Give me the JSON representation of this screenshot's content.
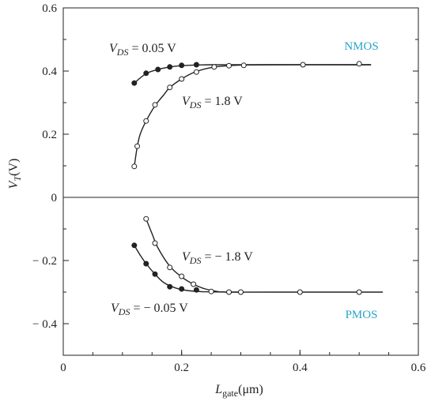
{
  "chart_data": {
    "type": "scatter",
    "x_axis": {
      "label_main": "L",
      "label_sub": "gate",
      "label_unit": "(μm)",
      "range": [
        0,
        0.6
      ],
      "ticks": [
        0,
        0.2,
        0.4,
        0.6
      ],
      "tick_labels": [
        "0",
        "0.2",
        "0.4",
        "0.6"
      ]
    },
    "y_axis": {
      "label_main": "V",
      "label_sub": "T",
      "label_unit": "(V)",
      "range": [
        -0.5,
        0.6
      ],
      "ticks": [
        0.6,
        0.4,
        0.2,
        0,
        -0.2,
        -0.4
      ],
      "tick_labels": [
        "0.6",
        "0.4",
        "0.2",
        "0",
        "− 0.2",
        "− 0.4"
      ]
    },
    "regions": [
      {
        "name": "NMOS",
        "color": "#2aa3c8"
      },
      {
        "name": "PMOS",
        "color": "#2aa3c8"
      }
    ],
    "series": [
      {
        "name": "V_DS = 0.05 V",
        "region": "NMOS",
        "marker": "filled",
        "label": {
          "v": "V",
          "sub": "DS",
          "rest": " = 0.05 V"
        },
        "points": [
          [
            0.12,
            0.362
          ],
          [
            0.14,
            0.393
          ],
          [
            0.16,
            0.405
          ],
          [
            0.18,
            0.413
          ],
          [
            0.2,
            0.418
          ],
          [
            0.225,
            0.42
          ]
        ],
        "curve": [
          [
            0.12,
            0.362
          ],
          [
            0.14,
            0.392
          ],
          [
            0.16,
            0.405
          ],
          [
            0.18,
            0.413
          ],
          [
            0.2,
            0.417
          ],
          [
            0.22,
            0.419
          ],
          [
            0.25,
            0.42
          ],
          [
            0.3,
            0.42
          ],
          [
            0.4,
            0.42
          ],
          [
            0.52,
            0.42
          ]
        ]
      },
      {
        "name": "V_DS = 1.8 V",
        "region": "NMOS",
        "marker": "open",
        "label": {
          "v": "V",
          "sub": "DS",
          "rest": " = 1.8 V"
        },
        "points": [
          [
            0.12,
            0.098
          ],
          [
            0.125,
            0.162
          ],
          [
            0.14,
            0.242
          ],
          [
            0.155,
            0.293
          ],
          [
            0.18,
            0.348
          ],
          [
            0.2,
            0.375
          ],
          [
            0.225,
            0.397
          ],
          [
            0.255,
            0.413
          ],
          [
            0.28,
            0.417
          ],
          [
            0.305,
            0.418
          ],
          [
            0.405,
            0.42
          ],
          [
            0.5,
            0.423
          ]
        ],
        "curve": [
          [
            0.12,
            0.098
          ],
          [
            0.125,
            0.16
          ],
          [
            0.13,
            0.2
          ],
          [
            0.14,
            0.242
          ],
          [
            0.155,
            0.29
          ],
          [
            0.17,
            0.325
          ],
          [
            0.18,
            0.348
          ],
          [
            0.2,
            0.375
          ],
          [
            0.22,
            0.395
          ],
          [
            0.24,
            0.407
          ],
          [
            0.26,
            0.414
          ],
          [
            0.28,
            0.417
          ],
          [
            0.3,
            0.419
          ],
          [
            0.35,
            0.42
          ],
          [
            0.52,
            0.42
          ]
        ]
      },
      {
        "name": "V_DS = − 1.8 V",
        "region": "PMOS",
        "marker": "open",
        "label": {
          "v": "V",
          "sub": "DS",
          "rest": " = − 1.8 V"
        },
        "points": [
          [
            0.14,
            -0.068
          ],
          [
            0.155,
            -0.145
          ],
          [
            0.18,
            -0.222
          ],
          [
            0.2,
            -0.25
          ],
          [
            0.22,
            -0.275
          ],
          [
            0.25,
            -0.298
          ],
          [
            0.28,
            -0.3
          ],
          [
            0.3,
            -0.3
          ],
          [
            0.4,
            -0.3
          ],
          [
            0.5,
            -0.3
          ]
        ],
        "curve": [
          [
            0.14,
            -0.068
          ],
          [
            0.15,
            -0.115
          ],
          [
            0.16,
            -0.16
          ],
          [
            0.18,
            -0.218
          ],
          [
            0.2,
            -0.252
          ],
          [
            0.22,
            -0.275
          ],
          [
            0.24,
            -0.29
          ],
          [
            0.26,
            -0.298
          ],
          [
            0.28,
            -0.3
          ],
          [
            0.35,
            -0.3
          ],
          [
            0.54,
            -0.3
          ]
        ]
      },
      {
        "name": "V_DS = − 0.05 V",
        "region": "PMOS",
        "marker": "filled",
        "label": {
          "v": "V",
          "sub": "DS",
          "rest": " = − 0.05 V"
        },
        "points": [
          [
            0.12,
            -0.152
          ],
          [
            0.14,
            -0.21
          ],
          [
            0.155,
            -0.243
          ],
          [
            0.18,
            -0.283
          ],
          [
            0.2,
            -0.29
          ],
          [
            0.225,
            -0.293
          ]
        ],
        "curve": [
          [
            0.12,
            -0.152
          ],
          [
            0.13,
            -0.183
          ],
          [
            0.14,
            -0.21
          ],
          [
            0.155,
            -0.243
          ],
          [
            0.17,
            -0.27
          ],
          [
            0.19,
            -0.287
          ],
          [
            0.21,
            -0.295
          ],
          [
            0.24,
            -0.299
          ],
          [
            0.3,
            -0.3
          ]
        ]
      }
    ],
    "grid": false,
    "divider_y": 0
  }
}
